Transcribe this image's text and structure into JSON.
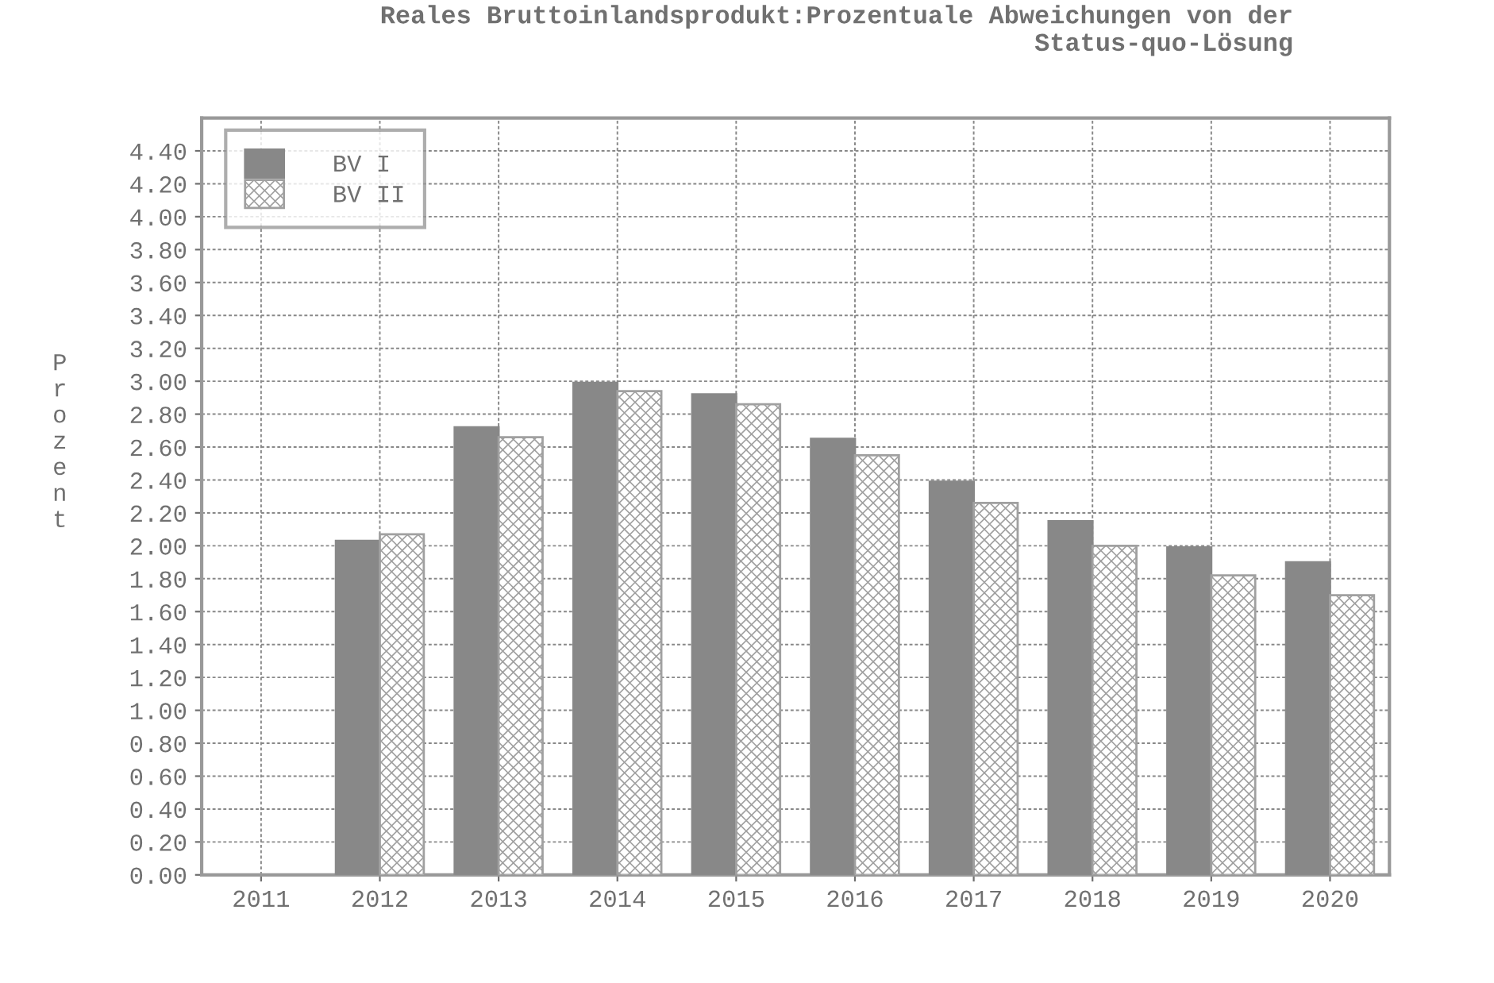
{
  "chart_data": {
    "type": "bar",
    "title": "Reales Bruttoinlandsprodukt:Prozentuale Abweichungen von der\nStatus-quo-Lösung",
    "ylabel": "Prozent",
    "categories": [
      "2011",
      "2012",
      "2013",
      "2014",
      "2015",
      "2016",
      "2017",
      "2018",
      "2019",
      "2020"
    ],
    "series": [
      {
        "name": "BV I",
        "color": "#888888",
        "values": [
          null,
          2.03,
          2.72,
          2.99,
          2.92,
          2.65,
          2.39,
          2.15,
          1.99,
          1.9
        ]
      },
      {
        "name": "BV II",
        "color": "#a0a0a0",
        "values": [
          null,
          2.07,
          2.66,
          2.94,
          2.86,
          2.55,
          2.26,
          2.0,
          1.82,
          1.7
        ]
      }
    ],
    "ylim": [
      0,
      4.6
    ],
    "yticks": [
      {
        "value": 0,
        "label": "0.00"
      },
      {
        "value": 0.2,
        "label": "0.20"
      },
      {
        "value": 0.4,
        "label": "0.40"
      },
      {
        "value": 0.6,
        "label": "0.60"
      },
      {
        "value": 0.8,
        "label": "0.80"
      },
      {
        "value": 1.0,
        "label": "1.00"
      },
      {
        "value": 1.2,
        "label": "1.20"
      },
      {
        "value": 1.4,
        "label": "1.40"
      },
      {
        "value": 1.6,
        "label": "1.60"
      },
      {
        "value": 1.8,
        "label": "1.80"
      },
      {
        "value": 2.0,
        "label": "2.00"
      },
      {
        "value": 2.2,
        "label": "2.20"
      },
      {
        "value": 2.4,
        "label": "2.40"
      },
      {
        "value": 2.6,
        "label": "2.60"
      },
      {
        "value": 2.8,
        "label": "2.80"
      },
      {
        "value": 3.0,
        "label": "3.00"
      },
      {
        "value": 3.2,
        "label": "3.20"
      },
      {
        "value": 3.4,
        "label": "3.40"
      },
      {
        "value": 3.6,
        "label": "3.60"
      },
      {
        "value": 3.8,
        "label": "3.80"
      },
      {
        "value": 4.0,
        "label": "4.00"
      },
      {
        "value": 4.2,
        "label": "4.20"
      },
      {
        "value": 4.4,
        "label": "4.40"
      }
    ],
    "grid": true,
    "legend": "top left"
  }
}
